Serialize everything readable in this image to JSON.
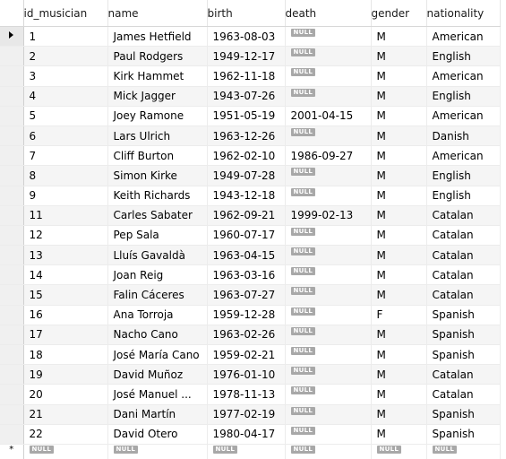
{
  "columns": [
    "id_musician",
    "name",
    "birth",
    "death",
    "gender",
    "nationality"
  ],
  "null_label": "NULL",
  "rows": [
    {
      "id": "1",
      "name": "James Hetfield",
      "birth": "1963-08-03",
      "death": null,
      "gender": "M",
      "nationality": "American"
    },
    {
      "id": "2",
      "name": "Paul Rodgers",
      "birth": "1949-12-17",
      "death": null,
      "gender": "M",
      "nationality": "English"
    },
    {
      "id": "3",
      "name": "Kirk Hammet",
      "birth": "1962-11-18",
      "death": null,
      "gender": "M",
      "nationality": "American"
    },
    {
      "id": "4",
      "name": "Mick Jagger",
      "birth": "1943-07-26",
      "death": null,
      "gender": "M",
      "nationality": "English"
    },
    {
      "id": "5",
      "name": "Joey Ramone",
      "birth": "1951-05-19",
      "death": "2001-04-15",
      "gender": "M",
      "nationality": "American"
    },
    {
      "id": "6",
      "name": "Lars Ulrich",
      "birth": "1963-12-26",
      "death": null,
      "gender": "M",
      "nationality": "Danish"
    },
    {
      "id": "7",
      "name": "Cliff Burton",
      "birth": "1962-02-10",
      "death": "1986-09-27",
      "gender": "M",
      "nationality": "American"
    },
    {
      "id": "8",
      "name": "Simon Kirke",
      "birth": "1949-07-28",
      "death": null,
      "gender": "M",
      "nationality": "English"
    },
    {
      "id": "9",
      "name": "Keith Richards",
      "birth": "1943-12-18",
      "death": null,
      "gender": "M",
      "nationality": "English"
    },
    {
      "id": "11",
      "name": "Carles Sabater",
      "birth": "1962-09-21",
      "death": "1999-02-13",
      "gender": "M",
      "nationality": "Catalan"
    },
    {
      "id": "12",
      "name": "Pep Sala",
      "birth": "1960-07-17",
      "death": null,
      "gender": "M",
      "nationality": "Catalan"
    },
    {
      "id": "13",
      "name": "Lluís Gavaldà",
      "birth": "1963-04-15",
      "death": null,
      "gender": "M",
      "nationality": "Catalan"
    },
    {
      "id": "14",
      "name": "Joan Reig",
      "birth": "1963-03-16",
      "death": null,
      "gender": "M",
      "nationality": "Catalan"
    },
    {
      "id": "15",
      "name": "Falin Cáceres",
      "birth": "1963-07-27",
      "death": null,
      "gender": "M",
      "nationality": "Catalan"
    },
    {
      "id": "16",
      "name": "Ana Torroja",
      "birth": "1959-12-28",
      "death": null,
      "gender": "F",
      "nationality": "Spanish"
    },
    {
      "id": "17",
      "name": "Nacho Cano",
      "birth": "1963-02-26",
      "death": null,
      "gender": "M",
      "nationality": "Spanish"
    },
    {
      "id": "18",
      "name": "José María Cano",
      "birth": "1959-02-21",
      "death": null,
      "gender": "M",
      "nationality": "Spanish"
    },
    {
      "id": "19",
      "name": "David Muñoz",
      "birth": "1976-01-10",
      "death": null,
      "gender": "M",
      "nationality": "Catalan"
    },
    {
      "id": "20",
      "name": "José Manuel ...",
      "birth": "1978-11-13",
      "death": null,
      "gender": "M",
      "nationality": "Catalan"
    },
    {
      "id": "21",
      "name": "Dani Martín",
      "birth": "1977-02-19",
      "death": null,
      "gender": "M",
      "nationality": "Spanish"
    },
    {
      "id": "22",
      "name": "David Otero",
      "birth": "1980-04-17",
      "death": null,
      "gender": "M",
      "nationality": "Spanish"
    }
  ],
  "gutter": {
    "current_row_icon": "arrow-right-icon",
    "new_row_icon": "asterisk-icon",
    "new_row_glyph": "*"
  }
}
